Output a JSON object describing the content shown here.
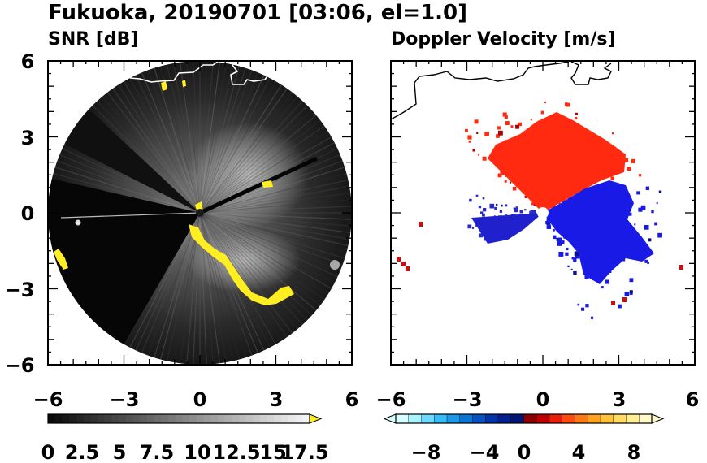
{
  "title": "Fukuoka, 20190701 [03:06, el=1.0]",
  "chart_data": [
    {
      "type": "heatmap",
      "title": "SNR [dB]",
      "xlim": [
        -6,
        6
      ],
      "ylim": [
        -6,
        6
      ],
      "xticks": [
        "-6",
        "-3",
        "0",
        "3",
        "6"
      ],
      "yticks": [
        "6",
        "3",
        "0",
        "-3",
        "-6"
      ],
      "domain": "circle",
      "radius": 6,
      "colorbar": {
        "type": "grayscale",
        "range": [
          0,
          18.5
        ],
        "extend": "max",
        "over_color": "#ffee22",
        "labels": [
          "0",
          "2.5",
          "5",
          "7.5",
          "10",
          "12.5",
          "15",
          "17.5"
        ]
      },
      "features": {
        "coastline": "white",
        "clutter_color": "#ffee22",
        "beam_blockage_sector_deg": [
          193,
          240
        ]
      }
    },
    {
      "type": "heatmap",
      "title": "Doppler Velocity [m/s]",
      "xlim": [
        -6,
        6
      ],
      "ylim": [
        -6,
        6
      ],
      "xticks": [
        "-6",
        "-3",
        "0",
        "3",
        "6"
      ],
      "yticks": [
        "6",
        "3",
        "0",
        "-3",
        "-6"
      ],
      "colorbar": {
        "type": "diverging",
        "range": [
          -10,
          10
        ],
        "extend": "both",
        "labels": [
          "-8",
          "-4",
          "0",
          "4",
          "8"
        ],
        "colors": [
          "#d8ffff",
          "#a8f4ff",
          "#6ed8ff",
          "#39bbf5",
          "#1b98e6",
          "#0c75d4",
          "#0552c0",
          "#0234a8",
          "#02208e",
          "#021474",
          "#8c0000",
          "#c00000",
          "#e8200a",
          "#ff4a12",
          "#ff7a16",
          "#ffa21e",
          "#ffc23a",
          "#ffdc62",
          "#ffee92",
          "#fff8c8"
        ]
      },
      "features": {
        "coastline": "black",
        "approaching_color": "#1a1ae6",
        "receding_color": "#ff2a10"
      }
    }
  ]
}
